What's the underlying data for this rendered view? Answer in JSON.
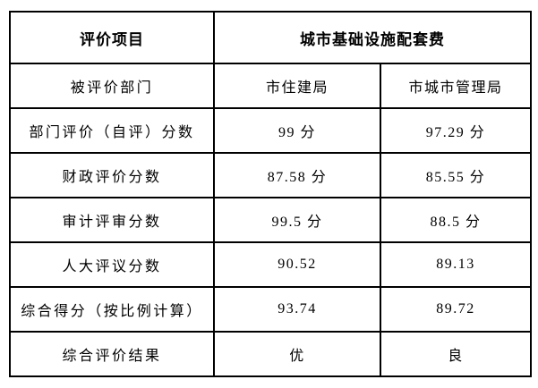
{
  "table": {
    "title_semantic": "performance-evaluation-table",
    "border_color": "#000000",
    "background_color": "#ffffff",
    "text_color": "#000000",
    "header": {
      "item_label": "评价项目",
      "project_label": "城市基础设施配套费"
    },
    "rows": [
      {
        "label": "被评价部门",
        "values": [
          "市住建局",
          "市城市管理局"
        ]
      },
      {
        "label": "部门评价（自评）分数",
        "values": [
          "99 分",
          "97.29 分"
        ]
      },
      {
        "label": "财政评价分数",
        "values": [
          "87.58 分",
          "85.55 分"
        ]
      },
      {
        "label": "审计评审分数",
        "values": [
          "99.5 分",
          "88.5 分"
        ]
      },
      {
        "label": "人大评议分数",
        "values": [
          "90.52",
          "89.13"
        ]
      },
      {
        "label": "综合得分（按比例计算）",
        "values": [
          "93.74",
          "89.72"
        ]
      },
      {
        "label": "综合评价结果",
        "values": [
          "优",
          "良"
        ]
      }
    ]
  }
}
